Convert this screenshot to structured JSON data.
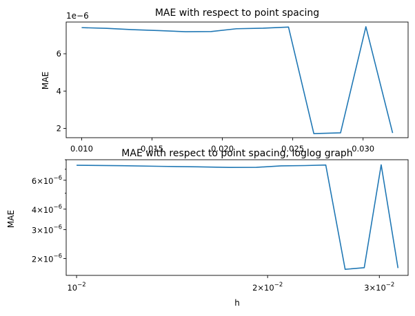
{
  "chart_data": [
    {
      "type": "line",
      "title": "MAE with respect to point spacing",
      "xlabel": "",
      "ylabel": "MAE",
      "offset_text": "1e−6",
      "xlim": [
        0.0089,
        0.0332
      ],
      "ylim": [
        1.5e-06,
        7.7e-06
      ],
      "x_ticks": [
        0.01,
        0.015,
        0.02,
        0.025,
        0.03
      ],
      "x_tick_labels": [
        "0.010",
        "0.015",
        "0.020",
        "0.025",
        "0.030"
      ],
      "y_ticks": [
        2e-06,
        4e-06,
        6e-06
      ],
      "y_tick_labels": [
        "2",
        "4",
        "6"
      ],
      "series": [
        {
          "color": "#1f77b4",
          "x": [
            0.01,
            0.0118,
            0.0136,
            0.0155,
            0.0174,
            0.0192,
            0.021,
            0.0229,
            0.0247,
            0.0265,
            0.0284,
            0.0302,
            0.0321
          ],
          "y": [
            7.4e-06,
            7.36e-06,
            7.29e-06,
            7.24e-06,
            7.18e-06,
            7.19e-06,
            7.34e-06,
            7.37e-06,
            7.43e-06,
            1.72e-06,
            1.76e-06,
            7.45e-06,
            1.75e-06
          ]
        }
      ]
    },
    {
      "type": "line",
      "title": "MAE with respect to point spacing, loglog graph",
      "xlabel": "h",
      "ylabel": "MAE",
      "x_scale": "log",
      "y_scale": "log",
      "xlim": [
        0.00963,
        0.0333
      ],
      "ylim": [
        1.58e-06,
        8e-06
      ],
      "x_ticks": [
        {
          "value": 0.01,
          "base": "10",
          "exp": "−2"
        },
        {
          "value": 0.02,
          "base": "2×10",
          "exp": "−2"
        },
        {
          "value": 0.03,
          "base": "3×10",
          "exp": "−2"
        }
      ],
      "y_ticks": [
        {
          "value": 2e-06,
          "base": "2×10",
          "exp": "−6"
        },
        {
          "value": 3e-06,
          "base": "3×10",
          "exp": "−6"
        },
        {
          "value": 4e-06,
          "base": "4×10",
          "exp": "−6"
        },
        {
          "value": 6e-06,
          "base": "6×10",
          "exp": "−6"
        }
      ],
      "series": [
        {
          "color": "#1f77b4",
          "x": [
            0.01,
            0.0118,
            0.0136,
            0.0155,
            0.0174,
            0.0192,
            0.021,
            0.0229,
            0.0247,
            0.0265,
            0.0284,
            0.0302,
            0.0321
          ],
          "y": [
            7.4e-06,
            7.36e-06,
            7.29e-06,
            7.24e-06,
            7.18e-06,
            7.19e-06,
            7.34e-06,
            7.37e-06,
            7.43e-06,
            1.72e-06,
            1.76e-06,
            7.45e-06,
            1.75e-06
          ]
        }
      ]
    }
  ]
}
